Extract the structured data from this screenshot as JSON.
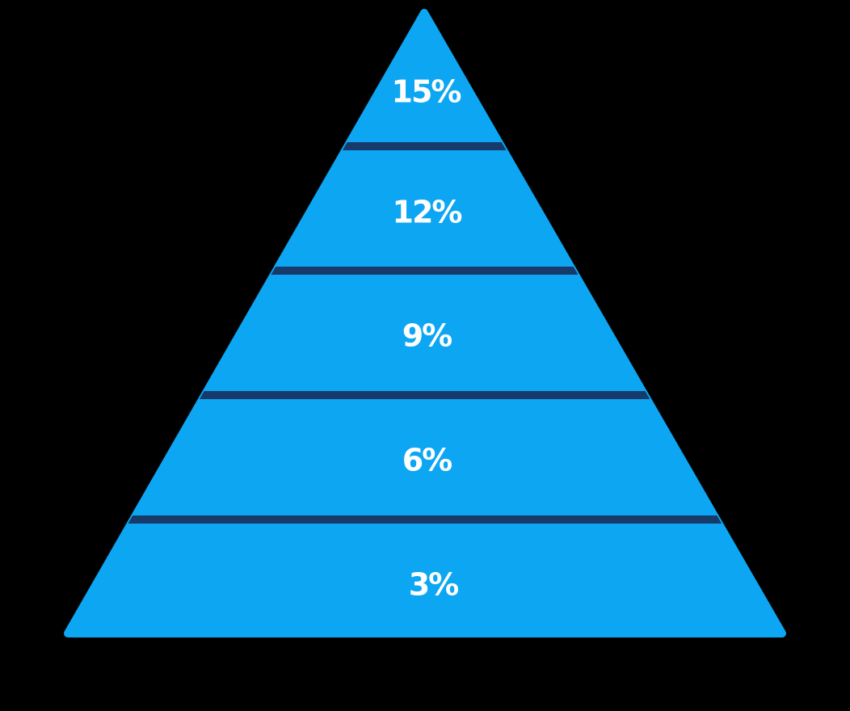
{
  "pyramid": {
    "levels": [
      {
        "label": "15%"
      },
      {
        "label": "12%"
      },
      {
        "label": "9%"
      },
      {
        "label": "6%"
      },
      {
        "label": "3%"
      }
    ]
  }
}
